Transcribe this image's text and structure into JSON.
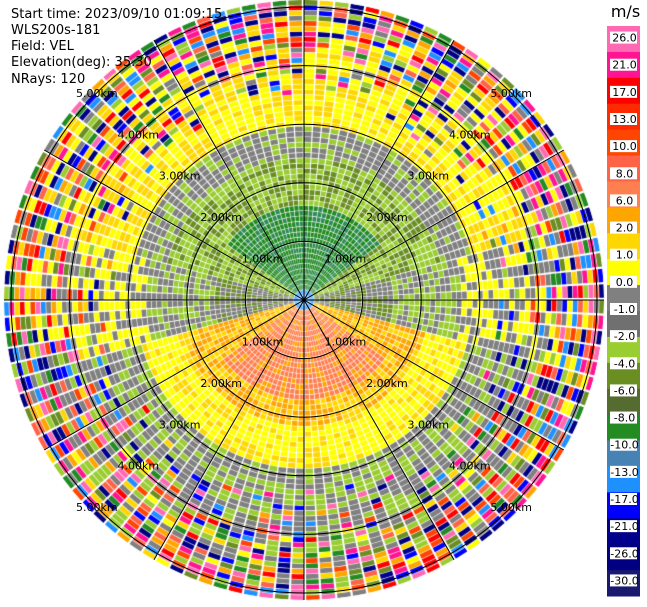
{
  "header": {
    "start_time": "Start time: 2023/09/10 01:09:15",
    "instrument": "WLS200s-181",
    "field": "Field: VEL",
    "elevation": "Elevation(deg): 35.30",
    "nrays": "NRays: 120"
  },
  "chart_data": {
    "type": "heatmap",
    "projection": "polar-ppi",
    "field": "VEL",
    "units": "m/s",
    "n_rays": 120,
    "range_rings_km": [
      1.0,
      2.0,
      3.0,
      4.0,
      5.0
    ],
    "ring_labels": [
      "1.00km",
      "2.00km",
      "3.00km",
      "4.00km",
      "5.00km"
    ],
    "spoke_angles_deg": [
      0,
      30,
      60,
      90,
      120,
      150,
      180,
      210,
      240,
      270,
      300,
      330
    ],
    "colorbar": {
      "label": "m/s",
      "ticks": [
        "26.0",
        "21.0",
        "17.0",
        "13.0",
        "10.0",
        "8.0",
        "6.0",
        "2.0",
        "1.0",
        "0.0",
        "-1.0",
        "-2.0",
        "-4.0",
        "-6.0",
        "-8.0",
        "-10.0",
        "-13.0",
        "-17.0",
        "-21.0",
        "-26.0",
        "-30.0"
      ],
      "colors": [
        "#ff69b4",
        "#ff1493",
        "#ff0000",
        "#ff2a00",
        "#ff4500",
        "#ff6347",
        "#ff7f50",
        "#ffa500",
        "#ffd700",
        "#ffff00",
        "#808080",
        "#707070",
        "#9acd32",
        "#6b8e23",
        "#556b2f",
        "#228b22",
        "#4682b4",
        "#1e90ff",
        "#0000ff",
        "#00008b",
        "#000080",
        "#191970"
      ]
    },
    "sectors": [
      {
        "from_deg": -60,
        "to_deg": 60,
        "trend": "negative (toward, green/grey)"
      },
      {
        "from_deg": 120,
        "to_deg": 240,
        "trend": "positive (away, orange/yellow)"
      }
    ]
  }
}
